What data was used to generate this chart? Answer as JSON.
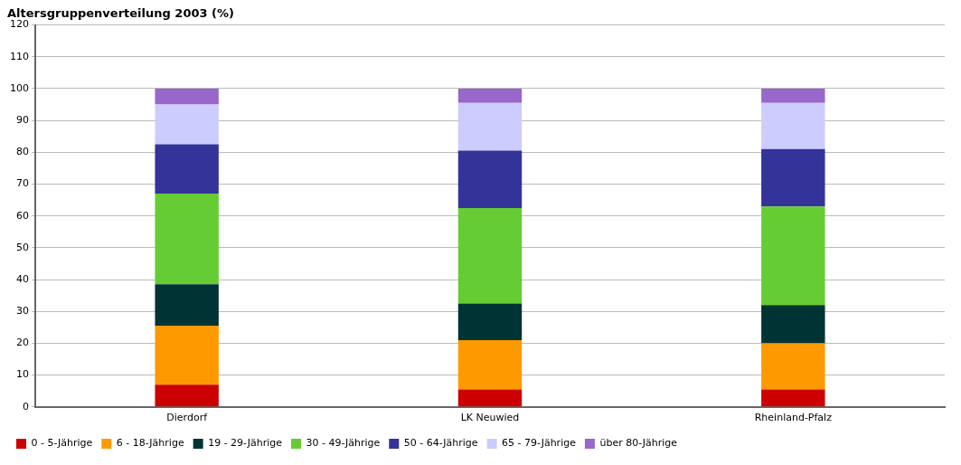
{
  "chart_data": {
    "type": "bar",
    "title": "Altersgruppenverteilung 2003 (%)",
    "categories": [
      "Dierdorf",
      "LK Neuwied",
      "Rheinland-Pfalz"
    ],
    "stacked": true,
    "series": [
      {
        "name": "0 - 5-Jährige",
        "color": "#cc0000",
        "values": [
          7,
          5.5,
          5.5
        ]
      },
      {
        "name": "6 - 18-Jährige",
        "color": "#ff9900",
        "values": [
          18.5,
          15.5,
          14.5
        ]
      },
      {
        "name": "19 - 29-Jährige",
        "color": "#003333",
        "values": [
          13,
          11.5,
          12
        ]
      },
      {
        "name": "30 - 49-Jährige",
        "color": "#66cc33",
        "values": [
          28.5,
          30,
          31
        ]
      },
      {
        "name": "50 - 64-Jährige",
        "color": "#333399",
        "values": [
          15.5,
          18,
          18
        ]
      },
      {
        "name": "65 - 79-Jährige",
        "color": "#ccccff",
        "values": [
          12.5,
          15,
          14.5
        ]
      },
      {
        "name": "über 80-Jährige",
        "color": "#9966cc",
        "values": [
          5,
          4.5,
          4.5
        ]
      }
    ],
    "ylim": [
      0,
      120
    ],
    "yticks": [
      0,
      10,
      20,
      30,
      40,
      50,
      60,
      70,
      80,
      90,
      100,
      110,
      120
    ],
    "grid": "y",
    "legend": "bottom"
  }
}
